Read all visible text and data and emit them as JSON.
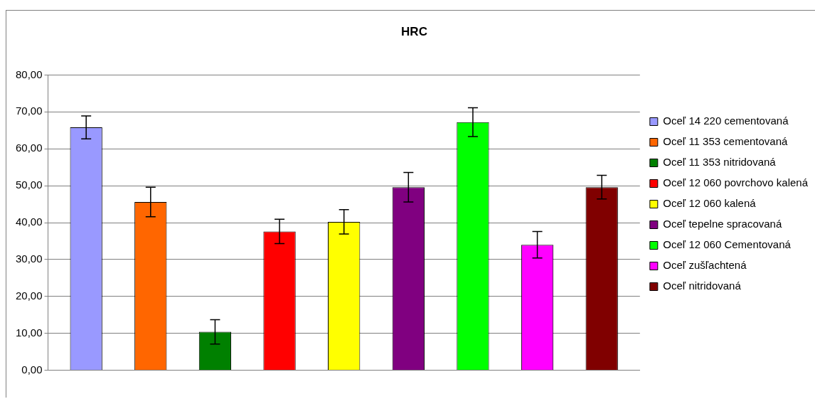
{
  "chart_data": {
    "type": "bar",
    "title": "HRC",
    "categories": [
      null
    ],
    "series": [
      {
        "name": "Oceľ 14 220 cementovaná",
        "color": "#9999ff",
        "values": [
          65.8
        ],
        "errors": [
          3.1
        ]
      },
      {
        "name": "Oceľ 11 353 cementovaná",
        "color": "#ff6600",
        "values": [
          45.6
        ],
        "errors": [
          4.0
        ]
      },
      {
        "name": "Oceľ 11 353 nitridovaná",
        "color": "#008000",
        "values": [
          10.4
        ],
        "errors": [
          3.3
        ]
      },
      {
        "name": "Oceľ 12 060 povrchovo kalená",
        "color": "#ff0000",
        "values": [
          37.6
        ],
        "errors": [
          3.3
        ]
      },
      {
        "name": "Oceľ 12 060 kalená",
        "color": "#ffff00",
        "values": [
          40.2
        ],
        "errors": [
          3.3
        ]
      },
      {
        "name": "Oceľ tepelne spracovaná",
        "color": "#800080",
        "values": [
          49.6
        ],
        "errors": [
          4.0
        ]
      },
      {
        "name": "Oceľ 12 060 Cementovaná",
        "color": "#00ff00",
        "values": [
          67.2
        ],
        "errors": [
          3.9
        ]
      },
      {
        "name": "Oceľ zušľachtená",
        "color": "#ff00ff",
        "values": [
          34.0
        ],
        "errors": [
          3.6
        ]
      },
      {
        "name": "Oceľ nitridovaná",
        "color": "#800000",
        "values": [
          49.6
        ],
        "errors": [
          3.2
        ]
      }
    ],
    "ylim": [
      0,
      80
    ],
    "yticks": [
      {
        "value": 0,
        "label": "0,00"
      },
      {
        "value": 10,
        "label": "10,00"
      },
      {
        "value": 20,
        "label": "20,00"
      },
      {
        "value": 30,
        "label": "30,00"
      },
      {
        "value": 40,
        "label": "40,00"
      },
      {
        "value": 50,
        "label": "50,00"
      },
      {
        "value": 60,
        "label": "60,00"
      },
      {
        "value": 70,
        "label": "70,00"
      },
      {
        "value": 80,
        "label": "80,00"
      }
    ],
    "grid": "y",
    "legend": "right"
  }
}
